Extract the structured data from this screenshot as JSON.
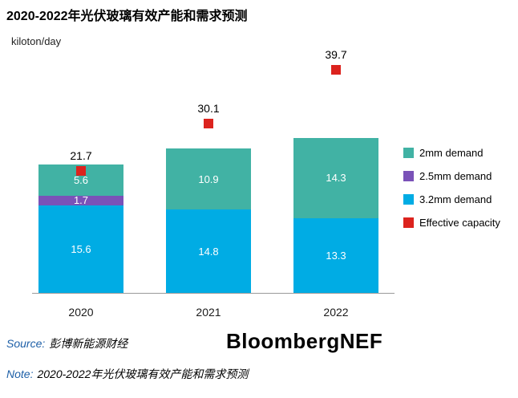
{
  "title": "2020-2022年光伏玻璃有效产能和需求预测",
  "unit_label": "kiloton/day",
  "chart_data": {
    "type": "bar",
    "stacked": true,
    "title": "2020-2022年光伏玻璃有效产能和需求预测",
    "ylabel": "kiloton/day",
    "ylim": [
      0,
      45
    ],
    "grid": false,
    "legend_position": "right",
    "categories": [
      "2020",
      "2021",
      "2022"
    ],
    "series": [
      {
        "name": "3.2mm demand",
        "color": "#00ace4",
        "values": [
          15.6,
          14.8,
          13.3
        ]
      },
      {
        "name": "2.5mm demand",
        "color": "#7a52b8",
        "values": [
          1.7,
          0,
          0
        ]
      },
      {
        "name": "2mm demand",
        "color": "#41b2a4",
        "values": [
          5.6,
          10.9,
          14.3
        ]
      }
    ],
    "markers": {
      "name": "Effective capacity",
      "color": "#dc231e",
      "values": [
        21.7,
        30.1,
        39.7
      ]
    },
    "legend": [
      {
        "label": "2mm demand",
        "color": "#41b2a4"
      },
      {
        "label": "2.5mm demand",
        "color": "#7a52b8"
      },
      {
        "label": "3.2mm demand",
        "color": "#00ace4"
      },
      {
        "label": "Effective capacity",
        "color": "#dc231e"
      }
    ]
  },
  "footer": {
    "source_label": "Source:",
    "source_text": "彭博新能源财经",
    "brand": "BloombergNEF",
    "note_label": "Note:",
    "note_text": "2020-2022年光伏玻璃有效产能和需求预测"
  }
}
